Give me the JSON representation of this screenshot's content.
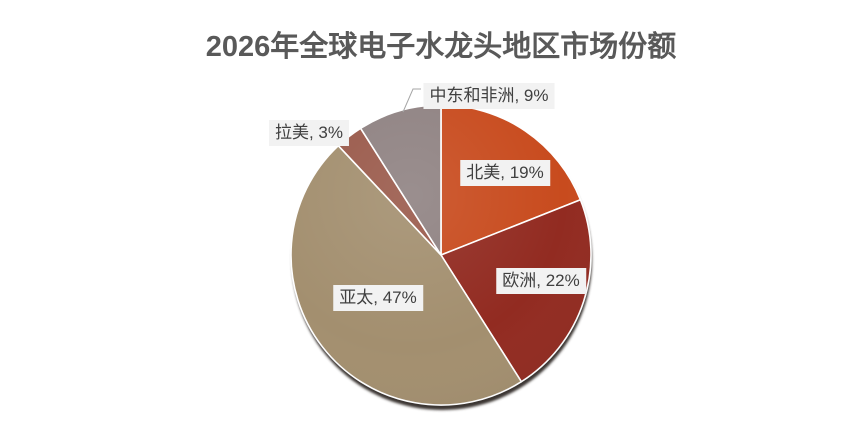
{
  "chart_data": {
    "type": "pie",
    "title": "2026年全球电子水龙头地区市场份额",
    "unit": "%",
    "legend": "none",
    "slices": [
      {
        "label": "北美",
        "value": 19,
        "color": "#C84B1E"
      },
      {
        "label": "欧洲",
        "value": 22,
        "color": "#922B21"
      },
      {
        "label": "亚太",
        "value": 47,
        "color": "#A38F6F"
      },
      {
        "label": "拉美",
        "value": 3,
        "color": "#9A5A4B"
      },
      {
        "label": "中东和非洲",
        "value": 9,
        "color": "#8F8282"
      }
    ]
  }
}
